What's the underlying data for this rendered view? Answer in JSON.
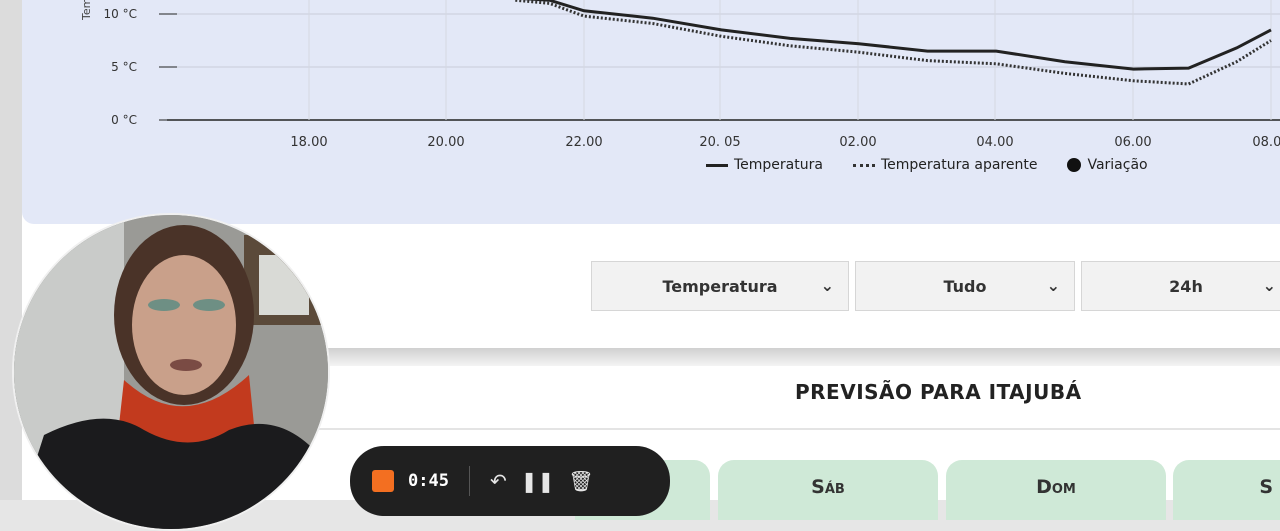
{
  "chart": {
    "y_axis_label": "Temp",
    "y_ticks": [
      "10 °C",
      "5 °C",
      "0 °C"
    ],
    "x_ticks": [
      "18.00",
      "20.00",
      "22.00",
      "20. 05",
      "02.00",
      "04.00",
      "06.00",
      "08.00"
    ]
  },
  "legend": {
    "temperature": "Temperatura",
    "apparent": "Temperatura aparente",
    "variation": "Variação"
  },
  "controls": {
    "metric": "Temperatura",
    "filter": "Tudo",
    "range": "24h"
  },
  "forecast": {
    "title": "PREVISÃO PARA ITAJUBÁ",
    "days": [
      "Sáb",
      "Dom",
      "S"
    ]
  },
  "recorder": {
    "time": "0:45"
  },
  "colors": {
    "chart_bg": "#e3e8f7",
    "tab_green": "#cfe9d7",
    "stop": "#f36f21"
  },
  "chart_data": {
    "type": "line",
    "ylabel": "Temp",
    "y_ticks": [
      "10 °C",
      "5 °C",
      "0 °C"
    ],
    "x_ticks": [
      "18.00",
      "20.00",
      "22.00",
      "20. 05",
      "02.00",
      "04.00",
      "06.00",
      "08.00"
    ],
    "series": [
      {
        "name": "Temperatura",
        "x": [
          21,
          21.5,
          22,
          23,
          24,
          25,
          26,
          27,
          28,
          29,
          30,
          30.8,
          31.5,
          32
        ],
        "y": [
          11.5,
          11.3,
          10.3,
          9.6,
          8.5,
          7.7,
          7.2,
          6.5,
          6.5,
          5.5,
          4.8,
          4.9,
          6.8,
          8.5
        ]
      },
      {
        "name": "Temperatura aparente",
        "x": [
          21,
          21.5,
          22,
          23,
          24,
          25,
          26,
          27,
          28,
          29,
          30,
          30.8,
          31.5,
          32
        ],
        "y": [
          11.3,
          11.0,
          9.8,
          9.1,
          7.9,
          7.0,
          6.4,
          5.6,
          5.3,
          4.4,
          3.7,
          3.4,
          5.5,
          7.5
        ]
      }
    ],
    "ylim": [
      0,
      12.5
    ],
    "legend": "bottom",
    "grid": true
  }
}
